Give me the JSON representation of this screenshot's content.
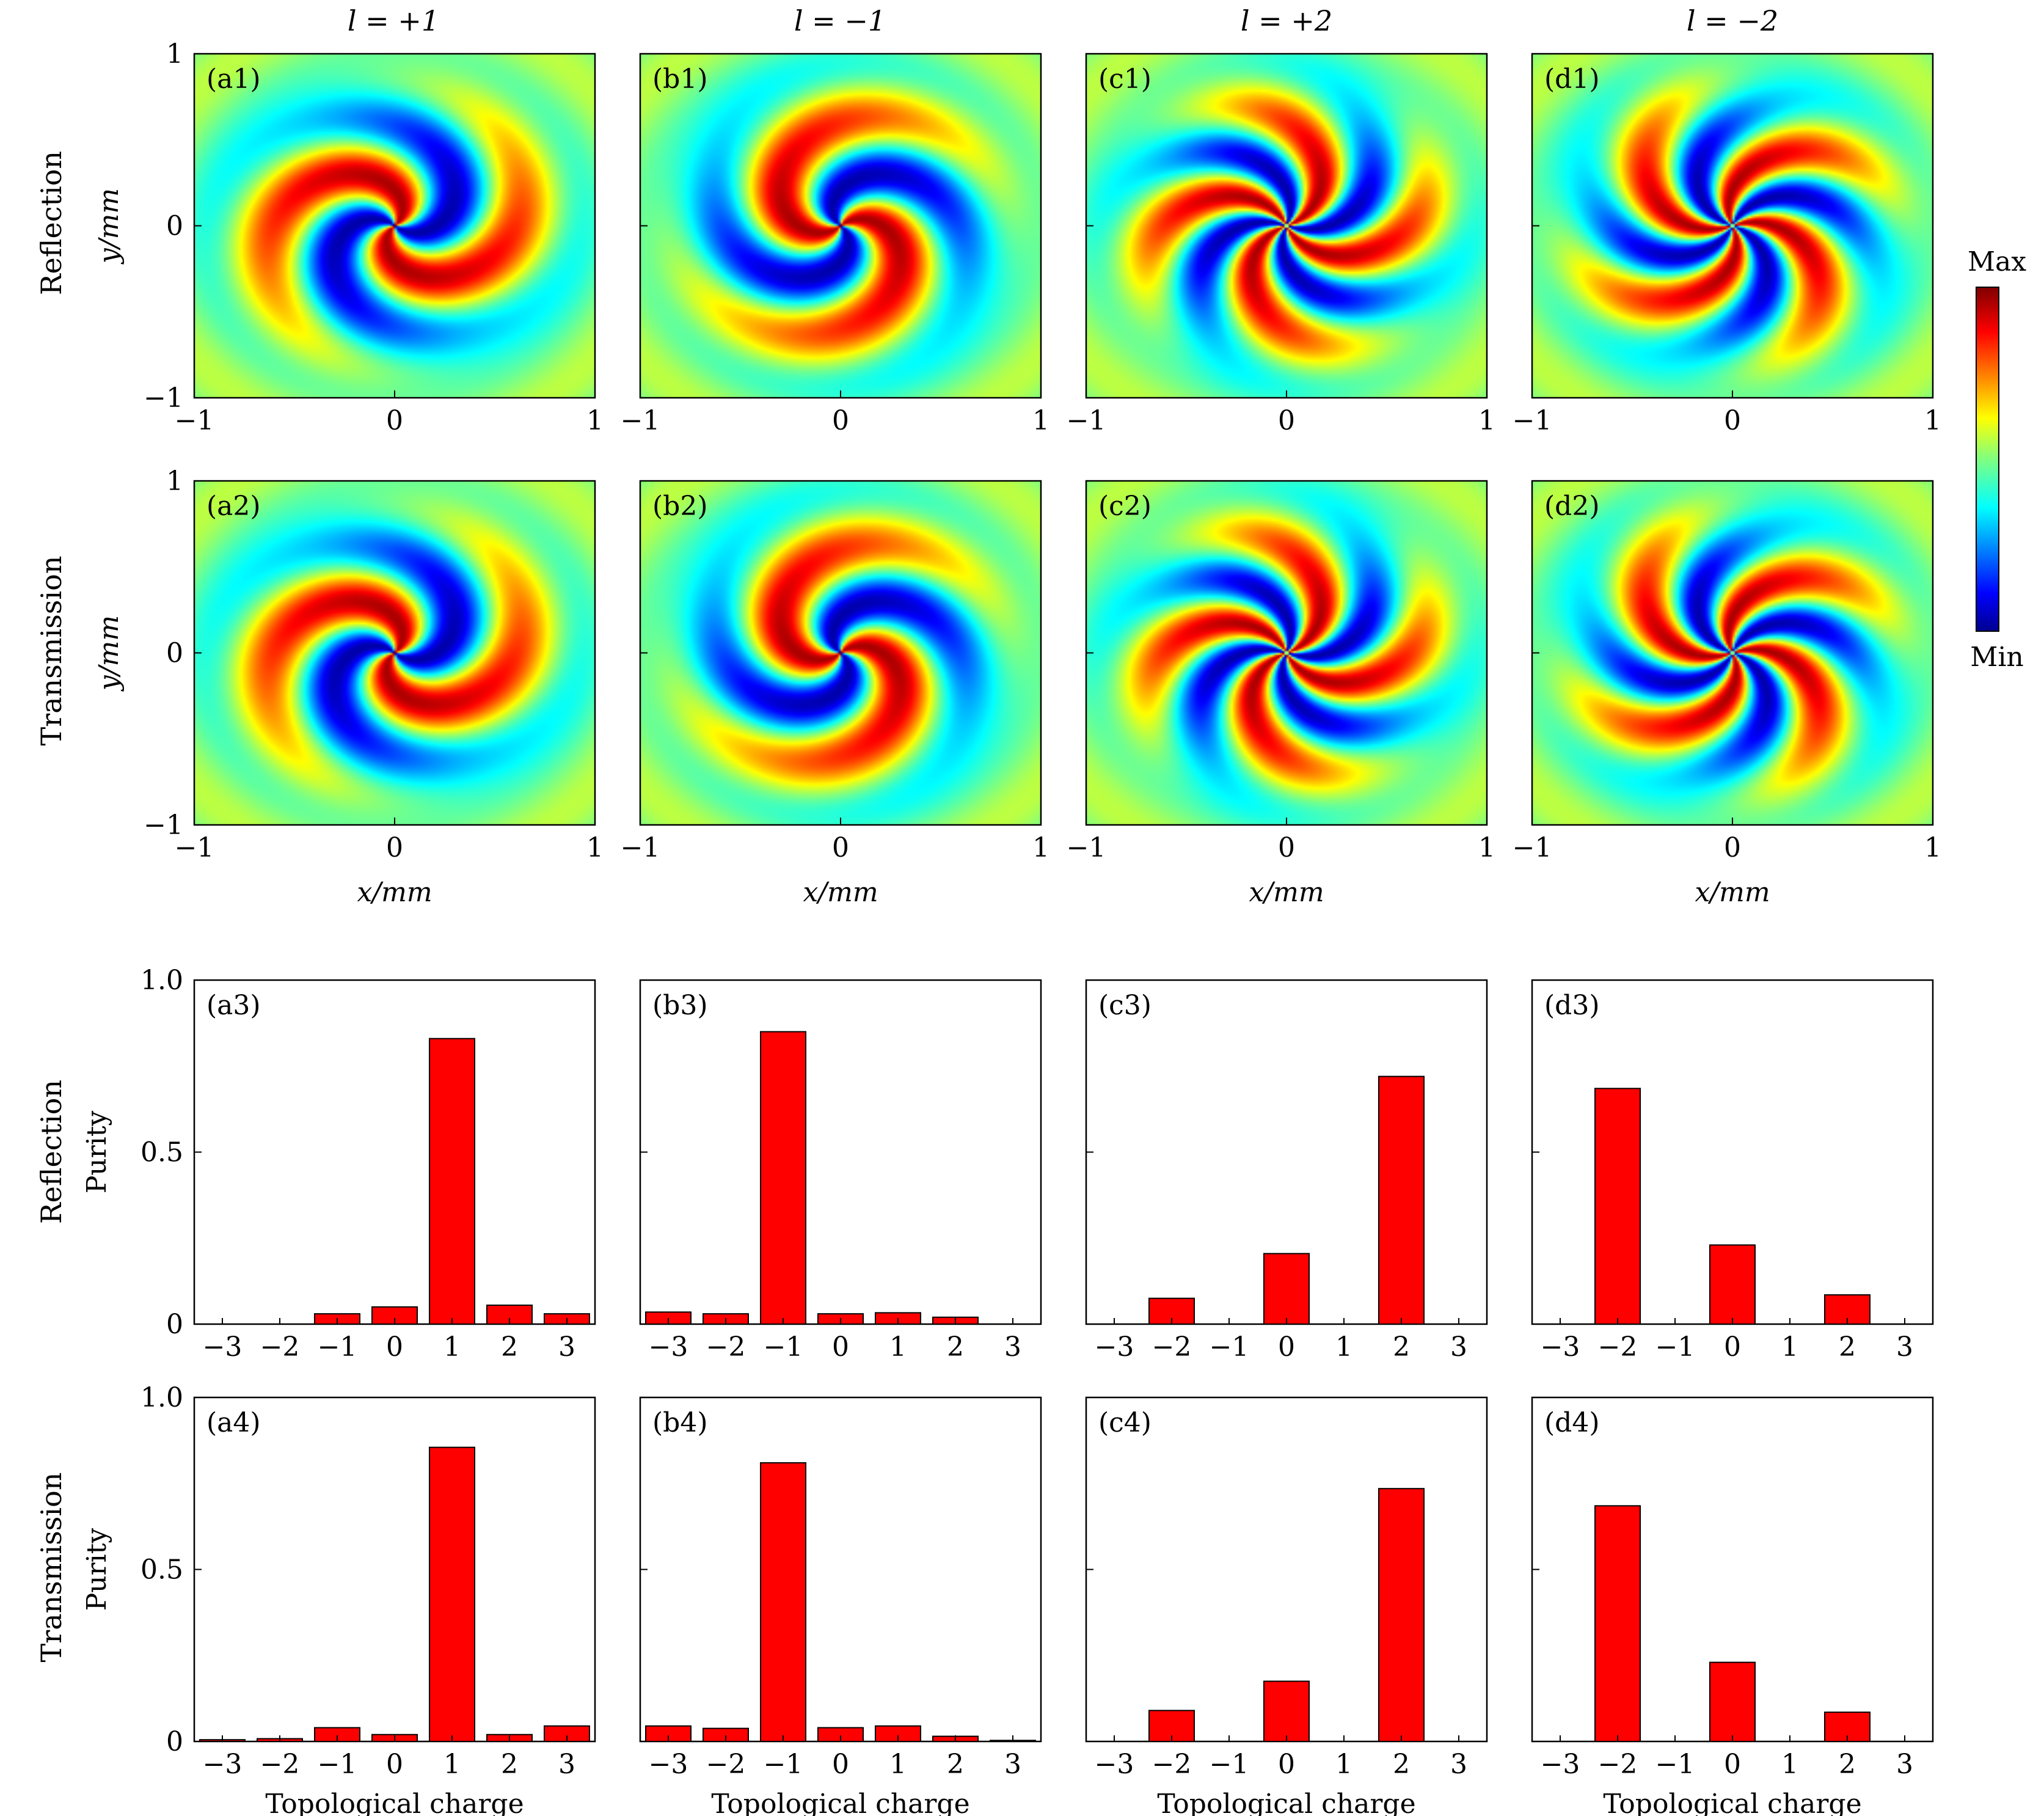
{
  "figure": {
    "column_titles": [
      "l = +1",
      "l = −1",
      "l = +2",
      "l = −2"
    ],
    "row_labels": {
      "reflection": "Reflection",
      "transmission": "Transmission"
    },
    "colorbar": {
      "max_label": "Max",
      "min_label": "Min",
      "colormap": "jet"
    }
  },
  "chart_data": [
    {
      "type": "heatmap",
      "panel": "(a1)",
      "row": "Reflection",
      "charge": 1,
      "pattern": "vortex intensity, 2 arms, clockwise twist",
      "xlabel": "",
      "ylabel": "y/mm",
      "xlim": [
        -1,
        1
      ],
      "ylim": [
        -1,
        1
      ],
      "x_ticks": [
        "−1",
        "0",
        "1"
      ],
      "y_ticks": [
        "−1",
        "0",
        "1"
      ]
    },
    {
      "type": "heatmap",
      "panel": "(b1)",
      "row": "Reflection",
      "charge": -1,
      "pattern": "vortex intensity, 2 arms, counter-clockwise twist",
      "xlabel": "",
      "ylabel": "",
      "xlim": [
        -1,
        1
      ],
      "ylim": [
        -1,
        1
      ],
      "x_ticks": [
        "−1",
        "0",
        "1"
      ],
      "y_ticks": []
    },
    {
      "type": "heatmap",
      "panel": "(c1)",
      "row": "Reflection",
      "charge": 2,
      "pattern": "vortex intensity, 4 arms, clockwise twist",
      "xlabel": "",
      "ylabel": "",
      "xlim": [
        -1,
        1
      ],
      "ylim": [
        -1,
        1
      ],
      "x_ticks": [
        "−1",
        "0",
        "1"
      ],
      "y_ticks": []
    },
    {
      "type": "heatmap",
      "panel": "(d1)",
      "row": "Reflection",
      "charge": -2,
      "pattern": "vortex intensity, 4 arms, counter-clockwise twist",
      "xlabel": "",
      "ylabel": "",
      "xlim": [
        -1,
        1
      ],
      "ylim": [
        -1,
        1
      ],
      "x_ticks": [
        "−1",
        "0",
        "1"
      ],
      "y_ticks": []
    },
    {
      "type": "heatmap",
      "panel": "(a2)",
      "row": "Transmission",
      "charge": 1,
      "pattern": "vortex intensity, 2 arms, clockwise twist",
      "xlabel": "x/mm",
      "ylabel": "y/mm",
      "xlim": [
        -1,
        1
      ],
      "ylim": [
        -1,
        1
      ],
      "x_ticks": [
        "−1",
        "0",
        "1"
      ],
      "y_ticks": [
        "−1",
        "0",
        "1"
      ]
    },
    {
      "type": "heatmap",
      "panel": "(b2)",
      "row": "Transmission",
      "charge": -1,
      "pattern": "vortex intensity, 2 arms, counter-clockwise twist",
      "xlabel": "x/mm",
      "ylabel": "",
      "xlim": [
        -1,
        1
      ],
      "ylim": [
        -1,
        1
      ],
      "x_ticks": [
        "−1",
        "0",
        "1"
      ],
      "y_ticks": []
    },
    {
      "type": "heatmap",
      "panel": "(c2)",
      "row": "Transmission",
      "charge": 2,
      "pattern": "vortex intensity, 4 arms, clockwise twist",
      "xlabel": "x/mm",
      "ylabel": "",
      "xlim": [
        -1,
        1
      ],
      "ylim": [
        -1,
        1
      ],
      "x_ticks": [
        "−1",
        "0",
        "1"
      ],
      "y_ticks": []
    },
    {
      "type": "heatmap",
      "panel": "(d2)",
      "row": "Transmission",
      "charge": -2,
      "pattern": "vortex intensity, 4 arms, counter-clockwise twist",
      "xlabel": "x/mm",
      "ylabel": "",
      "xlim": [
        -1,
        1
      ],
      "ylim": [
        -1,
        1
      ],
      "x_ticks": [
        "−1",
        "0",
        "1"
      ],
      "y_ticks": []
    },
    {
      "type": "bar",
      "panel": "(a3)",
      "row": "Reflection",
      "categories": [
        "−3",
        "−2",
        "−1",
        "0",
        "1",
        "2",
        "3"
      ],
      "values": [
        0.0,
        0.0,
        0.03,
        0.05,
        0.83,
        0.055,
        0.03
      ],
      "xlabel": "",
      "ylabel": "Purity",
      "ylim": [
        0,
        1
      ],
      "y_ticks": [
        "0",
        "0.5",
        "1.0"
      ],
      "bar_color": "#ff0000"
    },
    {
      "type": "bar",
      "panel": "(b3)",
      "row": "Reflection",
      "categories": [
        "−3",
        "−2",
        "−1",
        "0",
        "1",
        "2",
        "3"
      ],
      "values": [
        0.035,
        0.03,
        0.85,
        0.03,
        0.033,
        0.02,
        0.0
      ],
      "xlabel": "",
      "ylabel": "",
      "ylim": [
        0,
        1
      ],
      "y_ticks": [],
      "bar_color": "#ff0000"
    },
    {
      "type": "bar",
      "panel": "(c3)",
      "row": "Reflection",
      "categories": [
        "−3",
        "−2",
        "−1",
        "0",
        "1",
        "2",
        "3"
      ],
      "values": [
        0.0,
        0.075,
        0.0,
        0.205,
        0.0,
        0.72,
        0.0
      ],
      "xlabel": "",
      "ylabel": "",
      "ylim": [
        0,
        1
      ],
      "y_ticks": [],
      "bar_color": "#ff0000"
    },
    {
      "type": "bar",
      "panel": "(d3)",
      "row": "Reflection",
      "categories": [
        "−3",
        "−2",
        "−1",
        "0",
        "1",
        "2",
        "3"
      ],
      "values": [
        0.0,
        0.685,
        0.0,
        0.23,
        0.0,
        0.085,
        0.0
      ],
      "xlabel": "",
      "ylabel": "",
      "ylim": [
        0,
        1
      ],
      "y_ticks": [],
      "bar_color": "#ff0000"
    },
    {
      "type": "bar",
      "panel": "(a4)",
      "row": "Transmission",
      "categories": [
        "−3",
        "−2",
        "−1",
        "0",
        "1",
        "2",
        "3"
      ],
      "values": [
        0.005,
        0.008,
        0.04,
        0.02,
        0.855,
        0.02,
        0.045
      ],
      "xlabel": "Topological charge",
      "ylabel": "Purity",
      "ylim": [
        0,
        1
      ],
      "y_ticks": [
        "0",
        "0.5",
        "1.0"
      ],
      "bar_color": "#ff0000"
    },
    {
      "type": "bar",
      "panel": "(b4)",
      "row": "Transmission",
      "categories": [
        "−3",
        "−2",
        "−1",
        "0",
        "1",
        "2",
        "3"
      ],
      "values": [
        0.045,
        0.038,
        0.81,
        0.04,
        0.045,
        0.015,
        0.003
      ],
      "xlabel": "Topological charge",
      "ylabel": "",
      "ylim": [
        0,
        1
      ],
      "y_ticks": [],
      "bar_color": "#ff0000"
    },
    {
      "type": "bar",
      "panel": "(c4)",
      "row": "Transmission",
      "categories": [
        "−3",
        "−2",
        "−1",
        "0",
        "1",
        "2",
        "3"
      ],
      "values": [
        0.0,
        0.09,
        0.0,
        0.175,
        0.0,
        0.735,
        0.0
      ],
      "xlabel": "Topological charge",
      "ylabel": "",
      "ylim": [
        0,
        1
      ],
      "y_ticks": [],
      "bar_color": "#ff0000"
    },
    {
      "type": "bar",
      "panel": "(d4)",
      "row": "Transmission",
      "categories": [
        "−3",
        "−2",
        "−1",
        "0",
        "1",
        "2",
        "3"
      ],
      "values": [
        0.0,
        0.685,
        0.0,
        0.23,
        0.0,
        0.085,
        0.0
      ],
      "xlabel": "Topological charge",
      "ylabel": "",
      "ylim": [
        0,
        1
      ],
      "y_ticks": [],
      "bar_color": "#ff0000"
    }
  ]
}
